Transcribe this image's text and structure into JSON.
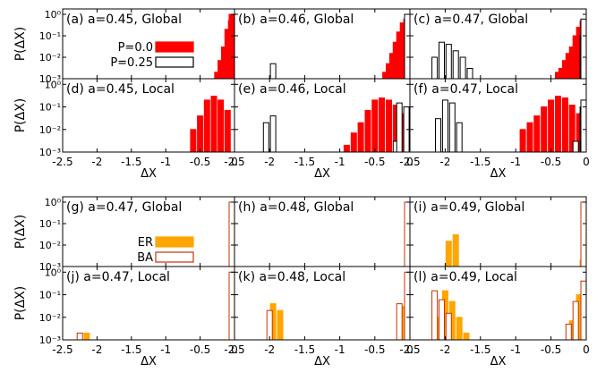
{
  "figure": {
    "ylabel_text": "P(ΔX)",
    "xlabel_text": "ΔX",
    "xticks": [
      {
        "v": -2.5,
        "label": "-2.5"
      },
      {
        "v": -2,
        "label": "-2"
      },
      {
        "v": -1.5,
        "label": "-1.5"
      },
      {
        "v": -1,
        "label": "-1"
      },
      {
        "v": -0.5,
        "label": "-0.5"
      },
      {
        "v": 0,
        "label": "0"
      }
    ],
    "yticks": [
      {
        "exp": 0,
        "label": "10⁰"
      },
      {
        "exp": -1,
        "label": "10⁻¹"
      },
      {
        "exp": -2,
        "label": "10⁻²"
      },
      {
        "exp": -3,
        "label": "10⁻³"
      }
    ],
    "legends": [
      {
        "group": 0,
        "entries": [
          {
            "label": "P=0.0",
            "fill": "#ff0000",
            "stroke": "#ff0000"
          },
          {
            "label": "P=0.25",
            "fill": "#ffffff",
            "stroke": "#000000"
          }
        ]
      },
      {
        "group": 1,
        "entries": [
          {
            "label": "ER",
            "fill": "#ffa500",
            "stroke": "#ffa500"
          },
          {
            "label": "BA",
            "fill": "#ffffff",
            "stroke": "#c83200"
          }
        ]
      }
    ]
  },
  "chart_data": [
    {
      "id": "a",
      "type": "bar",
      "title": "(a) a=0.45, Global",
      "xlim": [
        -2.5,
        0
      ],
      "ylim_log10": [
        -3,
        0
      ],
      "series": [
        {
          "name": "P=0.0",
          "fill": "#ff0000",
          "stroke": "#ff0000",
          "x": [
            -0.25,
            -0.2,
            -0.15,
            -0.1,
            -0.05,
            0.0
          ],
          "y": [
            0.002,
            0.007,
            0.03,
            0.2,
            0.5,
            1.0
          ]
        },
        {
          "name": "P=0.25",
          "fill": "#ffffff",
          "stroke": "#000000",
          "x": [],
          "y": []
        }
      ]
    },
    {
      "id": "b",
      "type": "bar",
      "title": "(b) a=0.46, Global",
      "xlim": [
        -2.5,
        0
      ],
      "ylim_log10": [
        -3,
        0
      ],
      "series": [
        {
          "name": "P=0.0",
          "fill": "#ff0000",
          "stroke": "#ff0000",
          "x": [
            -0.4,
            -0.35,
            -0.3,
            -0.25,
            -0.2,
            -0.15,
            -0.1,
            -0.05
          ],
          "y": [
            0.001,
            0.002,
            0.005,
            0.015,
            0.05,
            0.15,
            0.4,
            0.6
          ]
        },
        {
          "name": "P=0.25",
          "fill": "#ffffff",
          "stroke": "#000000",
          "x": [
            -1.95,
            0.0
          ],
          "y": [
            0.005,
            1.0
          ]
        }
      ]
    },
    {
      "id": "c",
      "type": "bar",
      "title": "(c) a=0.47, Global",
      "xlim": [
        -2.5,
        0
      ],
      "ylim_log10": [
        -3,
        0
      ],
      "series": [
        {
          "name": "P=0.0",
          "fill": "#ff0000",
          "stroke": "#ff0000",
          "x": [
            -0.4,
            -0.35,
            -0.3,
            -0.25,
            -0.2,
            -0.15,
            -0.1,
            -0.05
          ],
          "y": [
            0.002,
            0.003,
            0.007,
            0.015,
            0.03,
            0.1,
            0.25,
            0.5
          ]
        },
        {
          "name": "P=0.25",
          "fill": "#ffffff",
          "stroke": "#000000",
          "x": [
            -2.15,
            -2.05,
            -1.95,
            -1.85,
            -1.75,
            -1.65,
            -0.05,
            0.0
          ],
          "y": [
            0.01,
            0.05,
            0.04,
            0.02,
            0.01,
            0.003,
            0.1,
            0.6
          ]
        }
      ]
    },
    {
      "id": "d",
      "type": "bar",
      "title": "(d) a=0.45, Local",
      "xlim": [
        -2.5,
        0
      ],
      "ylim_log10": [
        -3,
        0
      ],
      "series": [
        {
          "name": "P=0.0",
          "fill": "#ff0000",
          "stroke": "#ff0000",
          "x": [
            -0.6,
            -0.5,
            -0.4,
            -0.3,
            -0.2,
            -0.1
          ],
          "y": [
            0.01,
            0.04,
            0.2,
            0.3,
            0.2,
            0.07
          ]
        },
        {
          "name": "P=0.25",
          "fill": "#ffffff",
          "stroke": "#000000",
          "x": [],
          "y": []
        }
      ]
    },
    {
      "id": "e",
      "type": "bar",
      "title": "(e) a=0.46, Local",
      "xlim": [
        -2.5,
        0
      ],
      "ylim_log10": [
        -3,
        0
      ],
      "series": [
        {
          "name": "P=0.0",
          "fill": "#ff0000",
          "stroke": "#ff0000",
          "x": [
            -0.9,
            -0.8,
            -0.7,
            -0.6,
            -0.5,
            -0.4,
            -0.3,
            -0.2,
            -0.1
          ],
          "y": [
            0.002,
            0.007,
            0.02,
            0.07,
            0.2,
            0.25,
            0.2,
            0.12,
            0.05
          ]
        },
        {
          "name": "P=0.25",
          "fill": "#ffffff",
          "stroke": "#000000",
          "x": [
            -2.05,
            -1.95,
            -0.2,
            -0.15,
            -0.05
          ],
          "y": [
            0.02,
            0.04,
            0.003,
            0.15,
            0.1
          ]
        }
      ]
    },
    {
      "id": "f",
      "type": "bar",
      "title": "(f) a=0.47, Local",
      "xlim": [
        -2.5,
        0
      ],
      "ylim_log10": [
        -3,
        0
      ],
      "series": [
        {
          "name": "P=0.0",
          "fill": "#ff0000",
          "stroke": "#ff0000",
          "x": [
            -0.9,
            -0.8,
            -0.7,
            -0.6,
            -0.5,
            -0.4,
            -0.3,
            -0.2,
            -0.1
          ],
          "y": [
            0.01,
            0.02,
            0.04,
            0.1,
            0.2,
            0.3,
            0.25,
            0.12,
            0.05
          ]
        },
        {
          "name": "P=0.25",
          "fill": "#ffffff",
          "stroke": "#000000",
          "x": [
            -2.1,
            -2.0,
            -1.9,
            -1.8,
            -0.15,
            -0.05,
            0.0
          ],
          "y": [
            0.03,
            0.2,
            0.15,
            0.02,
            0.003,
            0.1,
            0.2
          ]
        }
      ]
    },
    {
      "id": "g",
      "type": "bar",
      "title": "(g) a=0.47, Global",
      "xlim": [
        -2.5,
        0
      ],
      "ylim_log10": [
        -3,
        0
      ],
      "series": [
        {
          "name": "ER",
          "fill": "#ffa500",
          "stroke": "#ffa500",
          "x": [
            -0.02
          ],
          "y": [
            1.0
          ]
        },
        {
          "name": "BA",
          "fill": "#ffffff",
          "stroke": "#c83200",
          "x": [
            0.0
          ],
          "y": [
            1.0
          ]
        }
      ]
    },
    {
      "id": "h",
      "type": "bar",
      "title": "(h) a=0.48, Global",
      "xlim": [
        -2.5,
        0
      ],
      "ylim_log10": [
        -3,
        0
      ],
      "series": [
        {
          "name": "ER",
          "fill": "#ffa500",
          "stroke": "#ffa500",
          "x": [
            -0.02
          ],
          "y": [
            1.0
          ]
        },
        {
          "name": "BA",
          "fill": "#ffffff",
          "stroke": "#c83200",
          "x": [
            0.0
          ],
          "y": [
            1.0
          ]
        }
      ]
    },
    {
      "id": "i",
      "type": "bar",
      "title": "(i) a=0.49, Global",
      "xlim": [
        -2.5,
        0
      ],
      "ylim_log10": [
        -3,
        0
      ],
      "series": [
        {
          "name": "ER",
          "fill": "#ffa500",
          "stroke": "#ffa500",
          "x": [
            -1.95,
            -1.85,
            -0.05,
            -0.02
          ],
          "y": [
            0.015,
            0.03,
            0.002,
            1.0
          ]
        },
        {
          "name": "BA",
          "fill": "#ffffff",
          "stroke": "#c83200",
          "x": [
            0.0
          ],
          "y": [
            1.0
          ]
        }
      ]
    },
    {
      "id": "j",
      "type": "bar",
      "title": "(j) a=0.47, Local",
      "xlim": [
        -2.5,
        0
      ],
      "ylim_log10": [
        -3,
        0
      ],
      "series": [
        {
          "name": "ER",
          "fill": "#ffa500",
          "stroke": "#ffa500",
          "x": [
            -2.15,
            -0.02
          ],
          "y": [
            0.002,
            1.0
          ]
        },
        {
          "name": "BA",
          "fill": "#ffffff",
          "stroke": "#c83200",
          "x": [
            -2.25,
            0.0
          ],
          "y": [
            0.002,
            1.0
          ]
        }
      ]
    },
    {
      "id": "k",
      "type": "bar",
      "title": "(k) a=0.48, Local",
      "xlim": [
        -2.5,
        0
      ],
      "ylim_log10": [
        -3,
        0
      ],
      "series": [
        {
          "name": "ER",
          "fill": "#ffa500",
          "stroke": "#ffa500",
          "x": [
            -1.95,
            -1.85,
            -0.1,
            -0.02
          ],
          "y": [
            0.04,
            0.02,
            0.03,
            0.2
          ]
        },
        {
          "name": "BA",
          "fill": "#ffffff",
          "stroke": "#c83200",
          "x": [
            -2.0,
            -0.15,
            0.0
          ],
          "y": [
            0.02,
            0.04,
            1.0
          ]
        }
      ]
    },
    {
      "id": "l",
      "type": "bar",
      "title": "(l) a=0.49, Local",
      "xlim": [
        -2.5,
        0
      ],
      "ylim_log10": [
        -3,
        0
      ],
      "series": [
        {
          "name": "ER",
          "fill": "#ffa500",
          "stroke": "#ffa500",
          "x": [
            -2.1,
            -2.0,
            -1.9,
            -1.8,
            -1.7,
            -0.2,
            -0.1,
            -0.03
          ],
          "y": [
            0.01,
            0.15,
            0.05,
            0.01,
            0.002,
            0.007,
            0.1,
            0.4
          ]
        },
        {
          "name": "BA",
          "fill": "#ffffff",
          "stroke": "#c83200",
          "x": [
            -2.15,
            -2.05,
            -1.95,
            -0.25,
            -0.15,
            0.0
          ],
          "y": [
            0.15,
            0.06,
            0.015,
            0.005,
            0.05,
            0.4
          ]
        }
      ]
    }
  ]
}
